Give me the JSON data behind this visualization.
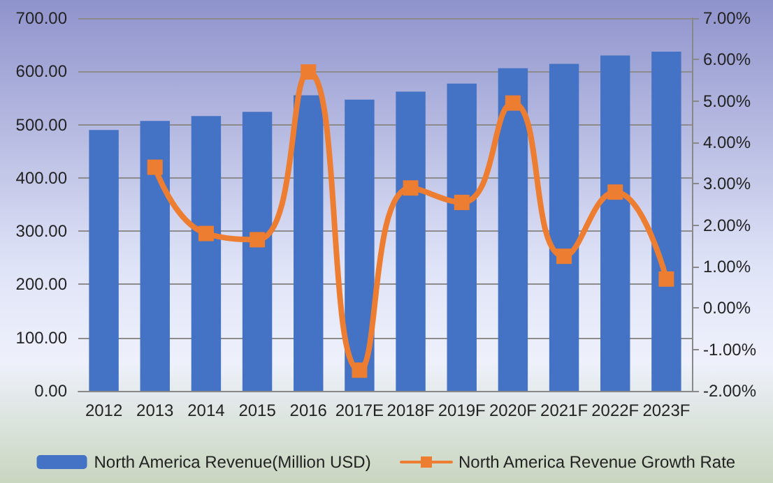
{
  "chart_data": {
    "type": "bar",
    "categories": [
      "2012",
      "2013",
      "2014",
      "2015",
      "2016",
      "2017E",
      "2018F",
      "2019F",
      "2020F",
      "2021F",
      "2022F",
      "2023F"
    ],
    "series": [
      {
        "name": "North America Revenue(Million USD)",
        "color": "#4472c4",
        "values": [
          490,
          507,
          516,
          524,
          555,
          547,
          562,
          577,
          606,
          614,
          630,
          637
        ]
      },
      {
        "name": "North America Revenue Growth Rate",
        "type": "line",
        "axis": "y2",
        "color": "#ed7d31",
        "marker": "square",
        "values": [
          null,
          3.4,
          1.8,
          1.65,
          5.7,
          -1.5,
          2.9,
          2.55,
          4.95,
          1.25,
          2.8,
          0.7
        ]
      }
    ],
    "ylim": [
      0,
      700
    ],
    "yticks": [
      {
        "value": 0,
        "label": "0.00"
      },
      {
        "value": 100,
        "label": "100.00"
      },
      {
        "value": 200,
        "label": "200.00"
      },
      {
        "value": 300,
        "label": "300.00"
      },
      {
        "value": 400,
        "label": "400.00"
      },
      {
        "value": 500,
        "label": "500.00"
      },
      {
        "value": 600,
        "label": "600.00"
      },
      {
        "value": 700,
        "label": "700.00"
      }
    ],
    "y2lim": [
      -2,
      7
    ],
    "y2ticks": [
      {
        "value": -2,
        "label": "-2.00%"
      },
      {
        "value": -1,
        "label": "-1.00%"
      },
      {
        "value": 0,
        "label": "0.00%"
      },
      {
        "value": 1,
        "label": "1.00%"
      },
      {
        "value": 2,
        "label": "2.00%"
      },
      {
        "value": 3,
        "label": "3.00%"
      },
      {
        "value": 4,
        "label": "4.00%"
      },
      {
        "value": 5,
        "label": "5.00%"
      },
      {
        "value": 6,
        "label": "6.00%"
      },
      {
        "value": 7,
        "label": "7.00%"
      }
    ],
    "grid": "y",
    "legend": "bottom"
  }
}
